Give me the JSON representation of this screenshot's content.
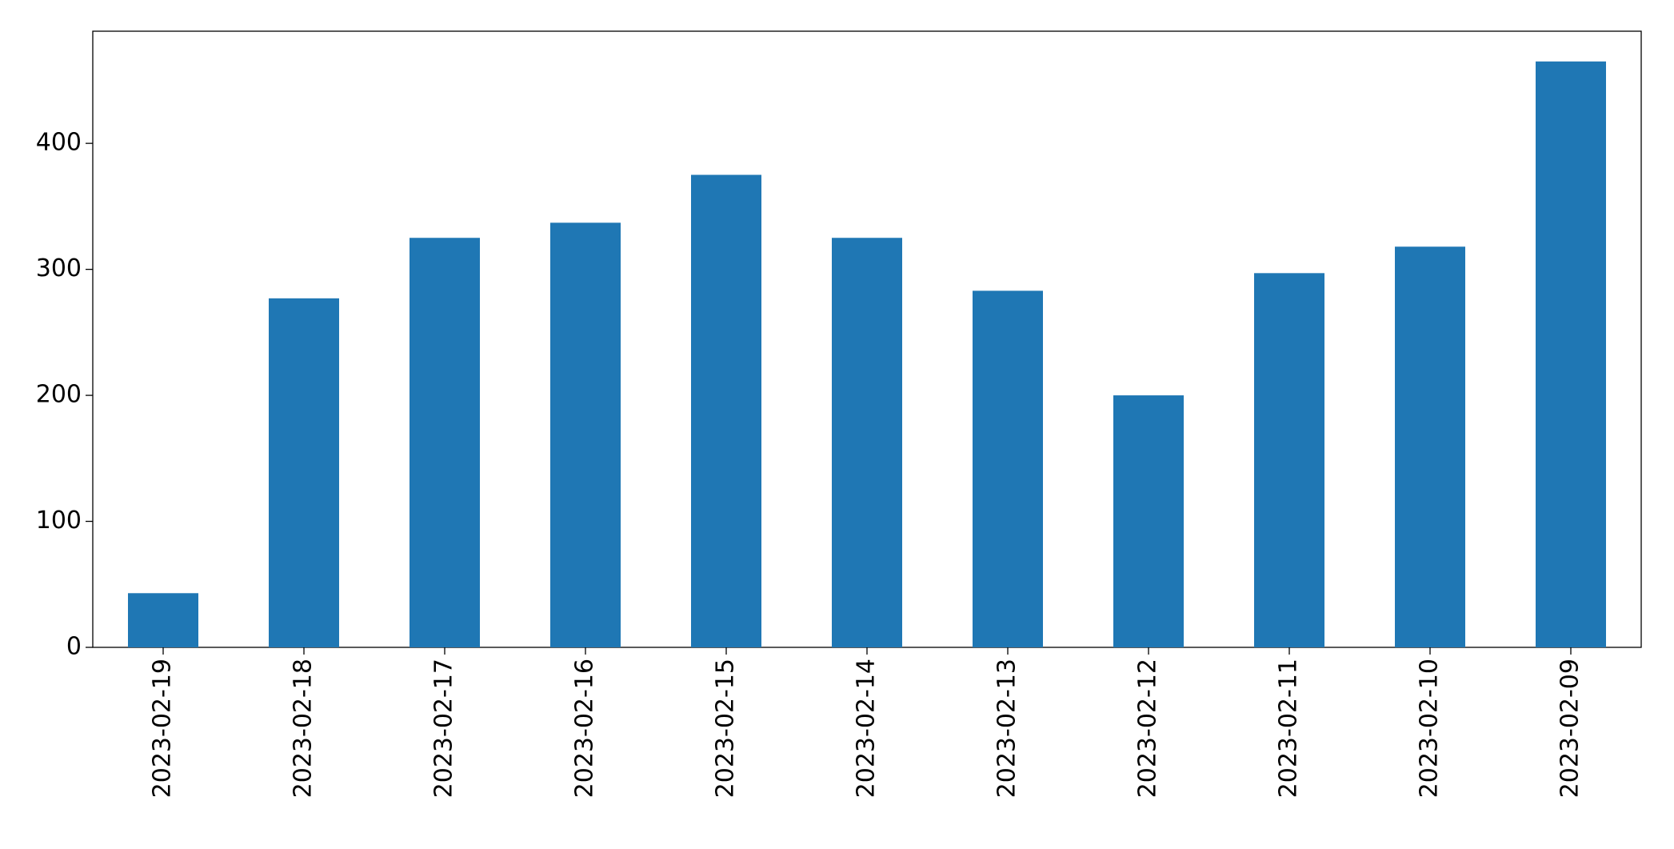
{
  "chart_data": {
    "type": "bar",
    "categories": [
      "2023-02-19",
      "2023-02-18",
      "2023-02-17",
      "2023-02-16",
      "2023-02-15",
      "2023-02-14",
      "2023-02-13",
      "2023-02-12",
      "2023-02-11",
      "2023-02-10",
      "2023-02-09"
    ],
    "values": [
      43,
      277,
      325,
      337,
      375,
      325,
      283,
      200,
      297,
      318,
      465
    ],
    "color": "#1f77b4",
    "ylim": [
      0,
      489
    ],
    "yticks": [
      0,
      100,
      200,
      300,
      400
    ],
    "grid": false
  }
}
